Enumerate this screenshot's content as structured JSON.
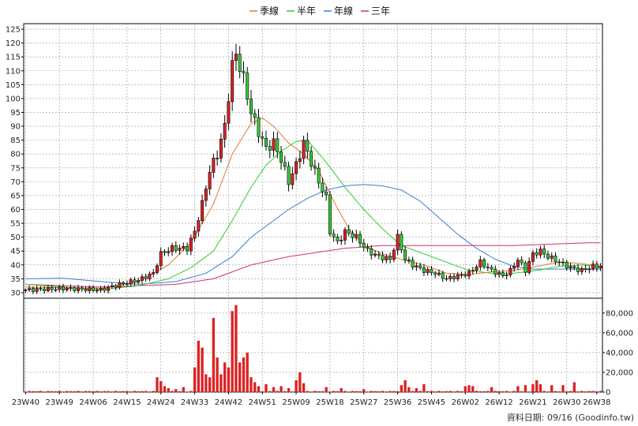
{
  "legend": [
    {
      "name": "季線",
      "color": "#e07b39"
    },
    {
      "name": "半年",
      "color": "#33cc33"
    },
    {
      "name": "年線",
      "color": "#3a7fd0"
    },
    {
      "name": "三年",
      "color": "#cc3377"
    }
  ],
  "footer": "資料日期: 09/16 (Goodinfo.tw)",
  "chart_data": {
    "type": "candlestick",
    "price_axis": {
      "min": 28,
      "max": 127,
      "ticks": [
        30,
        35,
        40,
        45,
        50,
        55,
        60,
        65,
        70,
        75,
        80,
        85,
        90,
        95,
        100,
        105,
        110,
        115,
        120,
        125
      ]
    },
    "volume_axis": {
      "min": 0,
      "max": 95000,
      "ticks": [
        0,
        20000,
        40000,
        60000,
        80000
      ],
      "tick_labels": [
        "0",
        "20,000",
        "40,000",
        "60,000",
        "80,000"
      ]
    },
    "x_tick_labels": [
      "23W40",
      "23W49",
      "24W06",
      "24W15",
      "24W24",
      "24W33",
      "24W42",
      "24W51",
      "25W09",
      "25W18",
      "25W27",
      "25W36",
      "25W45",
      "26W02",
      "26W12",
      "26W21",
      "26W30",
      "26W38"
    ],
    "x_tick_index": [
      0,
      9,
      18,
      27,
      36,
      45,
      54,
      63,
      72,
      81,
      90,
      99,
      108,
      117,
      126,
      135,
      144,
      152
    ],
    "n": 154,
    "anchors": [
      [
        0,
        31
      ],
      [
        10,
        31.5
      ],
      [
        20,
        31
      ],
      [
        25,
        33
      ],
      [
        30,
        34.5
      ],
      [
        34,
        37
      ],
      [
        36,
        44
      ],
      [
        39,
        46
      ],
      [
        43,
        46
      ],
      [
        45,
        52
      ],
      [
        47,
        62
      ],
      [
        49,
        74
      ],
      [
        51,
        80
      ],
      [
        53,
        90
      ],
      [
        55,
        112
      ],
      [
        56,
        116
      ],
      [
        58,
        107
      ],
      [
        60,
        95
      ],
      [
        62,
        88
      ],
      [
        64,
        82
      ],
      [
        66,
        84
      ],
      [
        68,
        78
      ],
      [
        70,
        70
      ],
      [
        72,
        76
      ],
      [
        74,
        84
      ],
      [
        76,
        77
      ],
      [
        78,
        70
      ],
      [
        80,
        64
      ],
      [
        81,
        52
      ],
      [
        83,
        48
      ],
      [
        85,
        52
      ],
      [
        88,
        50
      ],
      [
        91,
        45
      ],
      [
        94,
        43
      ],
      [
        97,
        42
      ],
      [
        99,
        50
      ],
      [
        101,
        42
      ],
      [
        103,
        40
      ],
      [
        106,
        38
      ],
      [
        109,
        37
      ],
      [
        112,
        35
      ],
      [
        115,
        36
      ],
      [
        118,
        37
      ],
      [
        121,
        41
      ],
      [
        124,
        38
      ],
      [
        127,
        36
      ],
      [
        129,
        38
      ],
      [
        131,
        42
      ],
      [
        133,
        38
      ],
      [
        135,
        44
      ],
      [
        137,
        45
      ],
      [
        139,
        43
      ],
      [
        142,
        41
      ],
      [
        145,
        39
      ],
      [
        148,
        38
      ],
      [
        151,
        39.5
      ],
      [
        153,
        39.5
      ]
    ],
    "volume_spikes": [
      [
        35,
        15000
      ],
      [
        36,
        11000
      ],
      [
        37,
        6000
      ],
      [
        38,
        4000
      ],
      [
        40,
        3000
      ],
      [
        42,
        5000
      ],
      [
        45,
        25000
      ],
      [
        46,
        52000
      ],
      [
        47,
        45000
      ],
      [
        48,
        18000
      ],
      [
        49,
        15000
      ],
      [
        50,
        75000
      ],
      [
        51,
        35000
      ],
      [
        52,
        18000
      ],
      [
        53,
        30000
      ],
      [
        54,
        25000
      ],
      [
        55,
        82000
      ],
      [
        56,
        88000
      ],
      [
        57,
        30000
      ],
      [
        58,
        35000
      ],
      [
        59,
        40000
      ],
      [
        60,
        15000
      ],
      [
        61,
        10000
      ],
      [
        62,
        6000
      ],
      [
        64,
        8000
      ],
      [
        66,
        5000
      ],
      [
        68,
        6000
      ],
      [
        70,
        4000
      ],
      [
        72,
        12000
      ],
      [
        73,
        20000
      ],
      [
        74,
        9000
      ],
      [
        80,
        5000
      ],
      [
        84,
        4000
      ],
      [
        90,
        3000
      ],
      [
        100,
        7000
      ],
      [
        101,
        12000
      ],
      [
        102,
        5000
      ],
      [
        104,
        4000
      ],
      [
        106,
        8000
      ],
      [
        117,
        6000
      ],
      [
        118,
        7000
      ],
      [
        119,
        6000
      ],
      [
        124,
        5000
      ],
      [
        131,
        6000
      ],
      [
        133,
        7000
      ],
      [
        135,
        8000
      ],
      [
        136,
        12000
      ],
      [
        137,
        8000
      ],
      [
        140,
        7000
      ],
      [
        143,
        7000
      ],
      [
        146,
        10000
      ]
    ],
    "ma_quarter": [
      [
        0,
        32
      ],
      [
        20,
        31.5
      ],
      [
        30,
        34
      ],
      [
        38,
        40
      ],
      [
        44,
        48
      ],
      [
        50,
        62
      ],
      [
        55,
        80
      ],
      [
        60,
        91
      ],
      [
        63,
        93
      ],
      [
        66,
        90
      ],
      [
        70,
        84
      ],
      [
        74,
        80
      ],
      [
        78,
        74
      ],
      [
        82,
        63
      ],
      [
        86,
        53
      ],
      [
        90,
        47
      ],
      [
        95,
        44
      ],
      [
        100,
        42
      ],
      [
        106,
        40
      ],
      [
        112,
        37
      ],
      [
        118,
        36.5
      ],
      [
        124,
        37.5
      ],
      [
        130,
        38
      ],
      [
        136,
        39.5
      ],
      [
        142,
        41
      ],
      [
        148,
        40.5
      ],
      [
        153,
        39.5
      ]
    ],
    "ma_half": [
      [
        0,
        33
      ],
      [
        20,
        31
      ],
      [
        30,
        32.5
      ],
      [
        38,
        35
      ],
      [
        44,
        39
      ],
      [
        50,
        45
      ],
      [
        55,
        56
      ],
      [
        60,
        68
      ],
      [
        64,
        76
      ],
      [
        68,
        81
      ],
      [
        72,
        84.5
      ],
      [
        75,
        85
      ],
      [
        80,
        77
      ],
      [
        85,
        68
      ],
      [
        90,
        60
      ],
      [
        95,
        53
      ],
      [
        100,
        47
      ],
      [
        106,
        44
      ],
      [
        112,
        41
      ],
      [
        118,
        38
      ],
      [
        124,
        37
      ],
      [
        130,
        37
      ],
      [
        136,
        38
      ],
      [
        142,
        39.5
      ],
      [
        148,
        40
      ],
      [
        153,
        39.5
      ]
    ],
    "ma_year": [
      [
        0,
        35
      ],
      [
        10,
        35.2
      ],
      [
        20,
        34
      ],
      [
        30,
        33
      ],
      [
        40,
        34
      ],
      [
        48,
        37
      ],
      [
        55,
        43
      ],
      [
        60,
        50
      ],
      [
        65,
        55
      ],
      [
        70,
        60
      ],
      [
        75,
        64
      ],
      [
        80,
        67
      ],
      [
        85,
        68.5
      ],
      [
        90,
        69
      ],
      [
        95,
        68.5
      ],
      [
        100,
        67
      ],
      [
        105,
        63
      ],
      [
        110,
        57
      ],
      [
        115,
        51
      ],
      [
        120,
        46
      ],
      [
        125,
        42
      ],
      [
        130,
        39.5
      ],
      [
        135,
        38.5
      ],
      [
        140,
        38.5
      ],
      [
        145,
        38.5
      ],
      [
        150,
        38.5
      ],
      [
        153,
        38.5
      ]
    ],
    "ma_3year": [
      [
        0,
        33
      ],
      [
        20,
        32
      ],
      [
        30,
        32.5
      ],
      [
        40,
        33
      ],
      [
        50,
        35
      ],
      [
        56,
        38
      ],
      [
        60,
        40
      ],
      [
        65,
        41.5
      ],
      [
        70,
        43
      ],
      [
        75,
        44
      ],
      [
        80,
        45
      ],
      [
        85,
        46
      ],
      [
        90,
        46.5
      ],
      [
        95,
        47
      ],
      [
        100,
        47
      ],
      [
        110,
        47
      ],
      [
        120,
        47
      ],
      [
        130,
        47
      ],
      [
        140,
        47.5
      ],
      [
        150,
        48
      ],
      [
        153,
        48
      ]
    ]
  }
}
